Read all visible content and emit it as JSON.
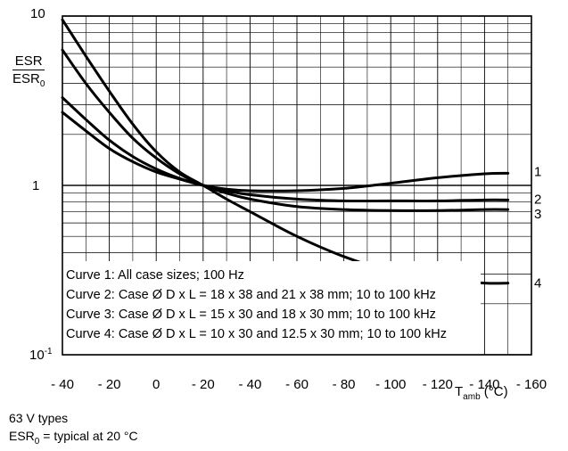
{
  "chart_data": {
    "type": "line",
    "x_tick_labels": [
      "- 40",
      "- 20",
      "0",
      "- 20",
      "- 40",
      "- 60",
      "- 80",
      "- 100",
      "- 120",
      "- 140",
      "- 160"
    ],
    "x_tick_values": [
      -40,
      -20,
      0,
      20,
      40,
      60,
      80,
      100,
      120,
      140,
      160
    ],
    "xlim": [
      -40,
      160
    ],
    "yscale": "log",
    "ylim": [
      0.1,
      10
    ],
    "y_tick_labels": [
      "10",
      "1",
      "10-1"
    ],
    "ylabel": {
      "numerator": "ESR",
      "denominator_base": "ESR",
      "denominator_sub": "0"
    },
    "xlabel": {
      "base": "T",
      "sub": "amb",
      "unit": " (°C)"
    },
    "grid": true,
    "series": [
      {
        "name": "1",
        "x": [
          -40,
          -30,
          -20,
          -10,
          0,
          10,
          20,
          30,
          40,
          60,
          80,
          100,
          120,
          140,
          150
        ],
        "y": [
          2.7,
          2.1,
          1.65,
          1.38,
          1.2,
          1.09,
          1.0,
          0.95,
          0.93,
          0.93,
          0.96,
          1.03,
          1.11,
          1.17,
          1.18
        ]
      },
      {
        "name": "2",
        "x": [
          -40,
          -30,
          -20,
          -10,
          0,
          10,
          20,
          30,
          40,
          60,
          80,
          100,
          120,
          140,
          150
        ],
        "y": [
          3.3,
          2.45,
          1.85,
          1.48,
          1.25,
          1.1,
          1.0,
          0.93,
          0.88,
          0.83,
          0.81,
          0.81,
          0.81,
          0.82,
          0.82
        ]
      },
      {
        "name": "3",
        "x": [
          -40,
          -30,
          -20,
          -10,
          0,
          10,
          20,
          30,
          40,
          60,
          80,
          100,
          120,
          140,
          150
        ],
        "y": [
          6.3,
          4.0,
          2.7,
          1.9,
          1.45,
          1.17,
          1.0,
          0.9,
          0.83,
          0.75,
          0.72,
          0.71,
          0.71,
          0.72,
          0.72
        ]
      },
      {
        "name": "4",
        "x": [
          -40,
          -30,
          -20,
          -10,
          0,
          10,
          20,
          30,
          40,
          60,
          80,
          100,
          120,
          140,
          150
        ],
        "y": [
          9.5,
          5.8,
          3.6,
          2.3,
          1.58,
          1.2,
          1.0,
          0.83,
          0.7,
          0.5,
          0.38,
          0.31,
          0.28,
          0.265,
          0.265
        ]
      }
    ],
    "legend": [
      "Curve 1: All case sizes; 100 Hz",
      "Curve 2: Case Ø D x L = 18 x 38 and 21 x 38 mm; 10 to 100 kHz",
      "Curve 3: Case Ø D x L = 15 x 30 and 18 x 30 mm; 10 to 100 kHz",
      "Curve 4: Case Ø D x L = 10 x 30 and 12.5 x 30 mm; 10 to 100 kHz"
    ],
    "legend_position": "bottom-left"
  },
  "footnote": {
    "line1": "63 V types",
    "line2_base": "ESR",
    "line2_sub": "0",
    "line2_rest": " = typical at 20 °C"
  },
  "colors": {
    "line": "#000000",
    "grid": "#000000",
    "background": "#ffffff"
  }
}
